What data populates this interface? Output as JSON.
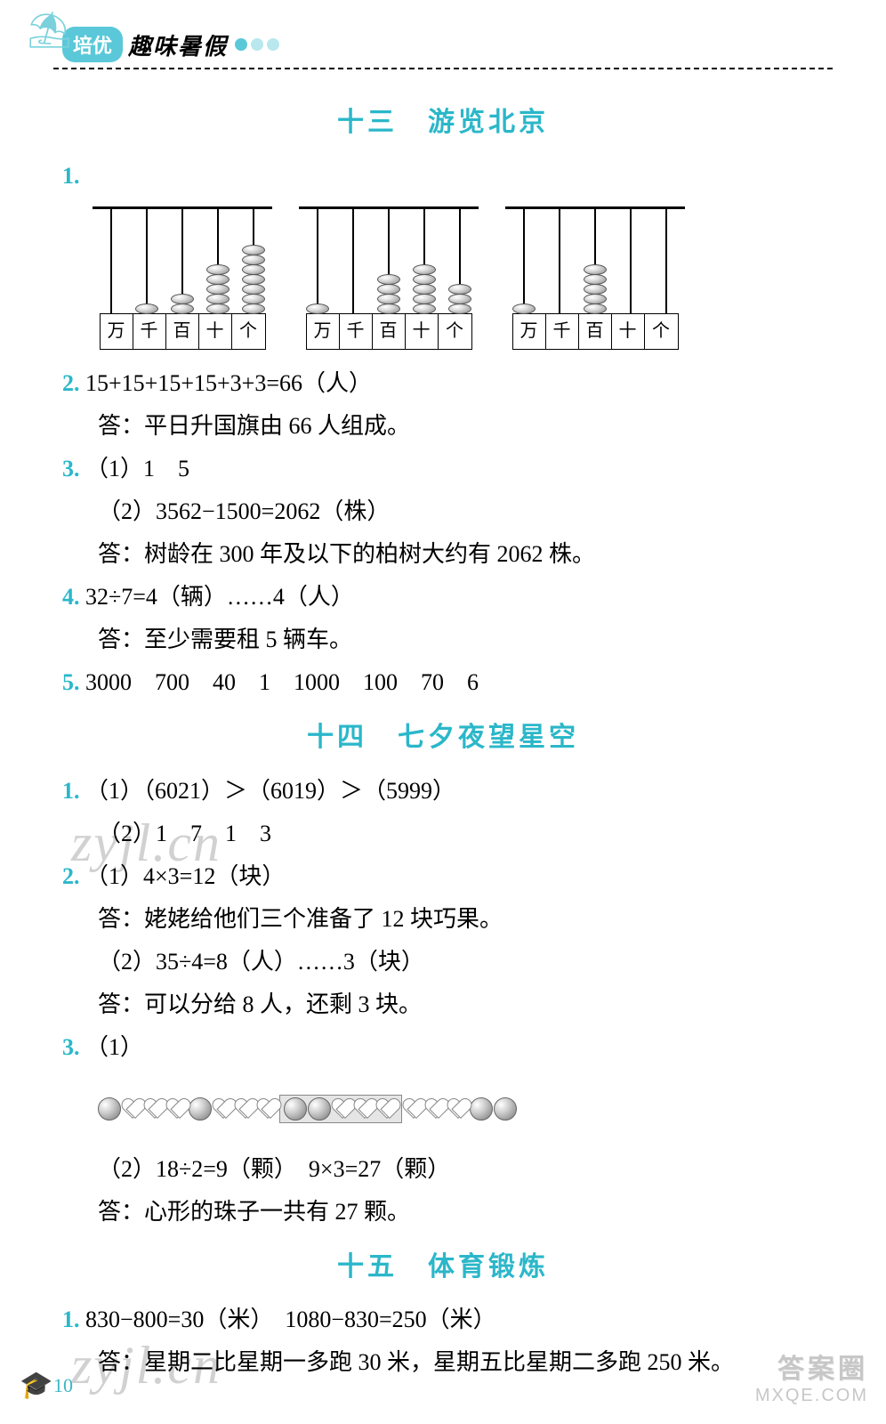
{
  "header": {
    "badge": "培优",
    "title": "趣味暑假"
  },
  "colors": {
    "accent": "#2bb7c9",
    "badge_bg": "#5ac8d8",
    "text": "#000000"
  },
  "sections": [
    {
      "id": "s13",
      "title": "十三　游览北京"
    },
    {
      "id": "s14",
      "title": "十四　七夕夜望星空"
    },
    {
      "id": "s15",
      "title": "十五　体育锻炼"
    }
  ],
  "abacuses": [
    {
      "beads": [
        0,
        1,
        2,
        5,
        7
      ],
      "labels": [
        "万",
        "千",
        "百",
        "十",
        "个"
      ]
    },
    {
      "beads": [
        1,
        0,
        4,
        5,
        3
      ],
      "labels": [
        "万",
        "千",
        "百",
        "十",
        "个"
      ]
    },
    {
      "beads": [
        1,
        0,
        5,
        0,
        0
      ],
      "labels": [
        "万",
        "千",
        "百",
        "十",
        "个"
      ]
    }
  ],
  "s13": {
    "q1_label": "1.",
    "q2_label": "2.",
    "q2_expr": "15+15+15+15+3+3=66（人）",
    "q2_ans": "答：平日升国旗由 66 人组成。",
    "q3_label": "3.",
    "q3_1": "（1）1　5",
    "q3_2": "（2）3562−1500=2062（株）",
    "q3_ans": "答：树龄在 300 年及以下的柏树大约有 2062 株。",
    "q4_label": "4.",
    "q4_expr": "32÷7=4（辆）……4（人）",
    "q4_ans": "答：至少需要租 5 辆车。",
    "q5_label": "5.",
    "q5_vals": "3000　700　40　1　1000　100　70　6"
  },
  "s14": {
    "q1_label": "1.",
    "q1_1": "（1）（6021）＞（6019）＞（5999）",
    "q1_2": "（2）1　7　1　3",
    "q2_label": "2.",
    "q2_1": "（1）4×3=12（块）",
    "q2_1_ans": "答：姥姥给他们三个准备了 12 块巧果。",
    "q2_2": "（2）35÷4=8（人）……3（块）",
    "q2_2_ans": "答：可以分给 8 人，还剩 3 块。",
    "q3_label": "3.",
    "q3_1": "（1）",
    "q3_2": "（2）18÷2=9（颗）　9×3=27（颗）",
    "q3_ans": "答：心形的珠子一共有 27 颗。"
  },
  "s15": {
    "q1_label": "1.",
    "q1_expr": "830−800=30（米）　1080−830=250（米）",
    "q1_ans": "答：星期二比星期一多跑 30 米，星期五比星期二多跑 250 米。"
  },
  "beads_pattern": {
    "prefix_groups": 2,
    "group": [
      "ball",
      "heart",
      "heart",
      "heart"
    ],
    "repeat": [
      "ball",
      "ball",
      "heart",
      "heart",
      "heart"
    ],
    "suffix": [
      "heart",
      "heart",
      "heart",
      "ball",
      "ball"
    ]
  },
  "page_number": "10",
  "watermark": "zyjl.cn",
  "corner": {
    "line1": "答案圈",
    "line2": "MXQE.COM"
  }
}
